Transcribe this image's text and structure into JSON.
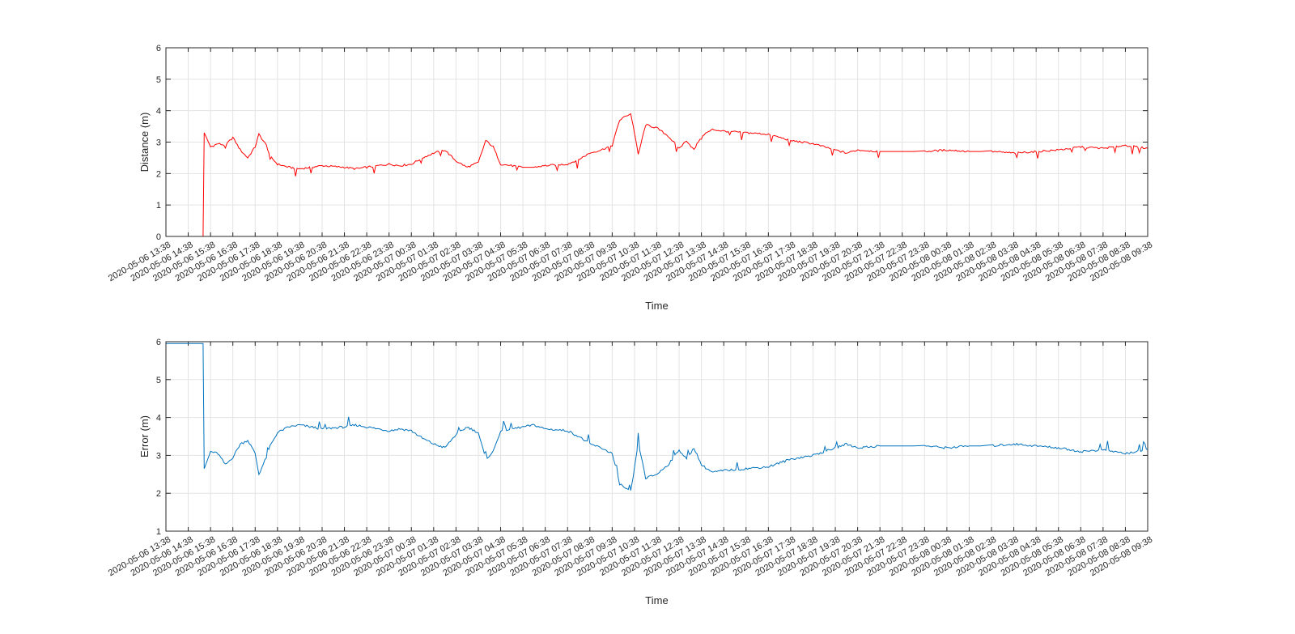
{
  "chart_data": [
    {
      "type": "line",
      "title": "",
      "xlabel": "Time",
      "ylabel": "Distance (m)",
      "ylim": [
        0,
        6
      ],
      "yticks": [
        0,
        1,
        2,
        3,
        4,
        5,
        6
      ],
      "grid": true,
      "legend": "none",
      "x_range": [
        "2020-05-06 13:38",
        "2020-05-08 09:38"
      ],
      "xtick_labels": [
        "2020-05-06 13:38",
        "2020-05-06 14:38",
        "2020-05-06 15:38",
        "2020-05-06 16:38",
        "2020-05-06 17:38",
        "2020-05-06 18:38",
        "2020-05-06 19:38",
        "2020-05-06 20:38",
        "2020-05-06 21:38",
        "2020-05-06 22:38",
        "2020-05-06 23:38",
        "2020-05-07 00:38",
        "2020-05-07 01:38",
        "2020-05-07 02:38",
        "2020-05-07 03:38",
        "2020-05-07 04:38",
        "2020-05-07 05:38",
        "2020-05-07 06:38",
        "2020-05-07 07:38",
        "2020-05-07 08:38",
        "2020-05-07 09:38",
        "2020-05-07 10:38",
        "2020-05-07 11:38",
        "2020-05-07 12:38",
        "2020-05-07 13:38",
        "2020-05-07 14:38",
        "2020-05-07 15:38",
        "2020-05-07 16:38",
        "2020-05-07 17:38",
        "2020-05-07 18:38",
        "2020-05-07 19:38",
        "2020-05-07 20:38",
        "2020-05-07 21:38",
        "2020-05-07 22:38",
        "2020-05-07 23:38",
        "2020-05-08 00:38",
        "2020-05-08 01:38",
        "2020-05-08 02:38",
        "2020-05-08 03:38",
        "2020-05-08 04:38",
        "2020-05-08 05:38",
        "2020-05-08 06:38",
        "2020-05-08 07:38",
        "2020-05-08 08:38",
        "2020-05-08 09:38"
      ],
      "series": [
        {
          "color": "#ff0000",
          "points": [
            [
              "2020-05-06 13:38",
              0
            ],
            [
              "2020-05-06 15:18",
              0
            ],
            [
              "2020-05-06 15:21",
              3.3
            ],
            [
              "2020-05-06 15:38",
              2.85
            ],
            [
              "2020-05-06 15:58",
              2.95
            ],
            [
              "2020-05-06 16:18",
              2.9
            ],
            [
              "2020-05-06 16:38",
              3.15
            ],
            [
              "2020-05-06 16:58",
              2.75
            ],
            [
              "2020-05-06 17:18",
              2.5
            ],
            [
              "2020-05-06 17:38",
              2.85
            ],
            [
              "2020-05-06 17:48",
              3.25
            ],
            [
              "2020-05-06 18:08",
              2.9
            ],
            [
              "2020-05-06 18:18",
              2.55
            ],
            [
              "2020-05-06 18:38",
              2.3
            ],
            [
              "2020-05-06 19:08",
              2.2
            ],
            [
              "2020-05-06 19:38",
              2.15
            ],
            [
              "2020-05-06 20:08",
              2.2
            ],
            [
              "2020-05-06 20:38",
              2.25
            ],
            [
              "2020-05-06 21:38",
              2.2
            ],
            [
              "2020-05-06 22:08",
              2.15
            ],
            [
              "2020-05-06 22:38",
              2.2
            ],
            [
              "2020-05-06 23:38",
              2.3
            ],
            [
              "2020-05-07 00:08",
              2.25
            ],
            [
              "2020-05-07 00:38",
              2.3
            ],
            [
              "2020-05-07 01:08",
              2.5
            ],
            [
              "2020-05-07 01:38",
              2.65
            ],
            [
              "2020-05-07 02:08",
              2.75
            ],
            [
              "2020-05-07 02:38",
              2.4
            ],
            [
              "2020-05-07 03:08",
              2.2
            ],
            [
              "2020-05-07 03:38",
              2.35
            ],
            [
              "2020-05-07 03:58",
              3.05
            ],
            [
              "2020-05-07 04:18",
              2.85
            ],
            [
              "2020-05-07 04:38",
              2.3
            ],
            [
              "2020-05-07 05:38",
              2.2
            ],
            [
              "2020-05-07 06:08",
              2.2
            ],
            [
              "2020-05-07 06:38",
              2.25
            ],
            [
              "2020-05-07 07:38",
              2.3
            ],
            [
              "2020-05-07 08:08",
              2.45
            ],
            [
              "2020-05-07 08:38",
              2.65
            ],
            [
              "2020-05-07 09:08",
              2.75
            ],
            [
              "2020-05-07 09:38",
              2.9
            ],
            [
              "2020-05-07 09:58",
              3.7
            ],
            [
              "2020-05-07 10:18",
              3.85
            ],
            [
              "2020-05-07 10:28",
              3.9
            ],
            [
              "2020-05-07 10:38",
              3.3
            ],
            [
              "2020-05-07 10:48",
              2.6
            ],
            [
              "2020-05-07 11:08",
              3.55
            ],
            [
              "2020-05-07 11:38",
              3.45
            ],
            [
              "2020-05-07 12:08",
              3.2
            ],
            [
              "2020-05-07 12:38",
              2.8
            ],
            [
              "2020-05-07 12:58",
              3.05
            ],
            [
              "2020-05-07 13:18",
              2.75
            ],
            [
              "2020-05-07 13:38",
              3.2
            ],
            [
              "2020-05-07 14:08",
              3.4
            ],
            [
              "2020-05-07 14:38",
              3.35
            ],
            [
              "2020-05-07 15:38",
              3.3
            ],
            [
              "2020-05-07 16:38",
              3.25
            ],
            [
              "2020-05-07 17:38",
              3.05
            ],
            [
              "2020-05-07 18:38",
              2.95
            ],
            [
              "2020-05-07 19:38",
              2.75
            ],
            [
              "2020-05-07 20:08",
              2.65
            ],
            [
              "2020-05-07 20:38",
              2.75
            ],
            [
              "2020-05-07 21:38",
              2.7
            ],
            [
              "2020-05-07 22:38",
              2.7
            ],
            [
              "2020-05-07 23:38",
              2.7
            ],
            [
              "2020-05-08 00:38",
              2.75
            ],
            [
              "2020-05-08 01:38",
              2.7
            ],
            [
              "2020-05-08 02:38",
              2.7
            ],
            [
              "2020-05-08 03:38",
              2.65
            ],
            [
              "2020-05-08 04:38",
              2.7
            ],
            [
              "2020-05-08 05:38",
              2.75
            ],
            [
              "2020-05-08 06:38",
              2.85
            ],
            [
              "2020-05-08 07:38",
              2.8
            ],
            [
              "2020-05-08 08:38",
              2.9
            ],
            [
              "2020-05-08 09:08",
              2.85
            ],
            [
              "2020-05-08 09:38",
              2.8
            ]
          ]
        }
      ]
    },
    {
      "type": "line",
      "title": "",
      "xlabel": "Time",
      "ylabel": "Error (m)",
      "ylim": [
        1,
        6
      ],
      "yticks": [
        1,
        2,
        3,
        4,
        5,
        6
      ],
      "grid": true,
      "legend": "none",
      "x_range": [
        "2020-05-06 13:38",
        "2020-05-08 09:38"
      ],
      "xtick_labels": [
        "2020-05-06 13:38",
        "2020-05-06 14:38",
        "2020-05-06 15:38",
        "2020-05-06 16:38",
        "2020-05-06 17:38",
        "2020-05-06 18:38",
        "2020-05-06 19:38",
        "2020-05-06 20:38",
        "2020-05-06 21:38",
        "2020-05-06 22:38",
        "2020-05-06 23:38",
        "2020-05-07 00:38",
        "2020-05-07 01:38",
        "2020-05-07 02:38",
        "2020-05-07 03:38",
        "2020-05-07 04:38",
        "2020-05-07 05:38",
        "2020-05-07 06:38",
        "2020-05-07 07:38",
        "2020-05-07 08:38",
        "2020-05-07 09:38",
        "2020-05-07 10:38",
        "2020-05-07 11:38",
        "2020-05-07 12:38",
        "2020-05-07 13:38",
        "2020-05-07 14:38",
        "2020-05-07 15:38",
        "2020-05-07 16:38",
        "2020-05-07 17:38",
        "2020-05-07 18:38",
        "2020-05-07 19:38",
        "2020-05-07 20:38",
        "2020-05-07 21:38",
        "2020-05-07 22:38",
        "2020-05-07 23:38",
        "2020-05-08 00:38",
        "2020-05-08 01:38",
        "2020-05-08 02:38",
        "2020-05-08 03:38",
        "2020-05-08 04:38",
        "2020-05-08 05:38",
        "2020-05-08 06:38",
        "2020-05-08 07:38",
        "2020-05-08 08:38",
        "2020-05-08 09:38"
      ],
      "series": [
        {
          "color": "#0072bd",
          "points": [
            [
              "2020-05-06 13:38",
              5.95
            ],
            [
              "2020-05-06 15:18",
              5.95
            ],
            [
              "2020-05-06 15:21",
              2.65
            ],
            [
              "2020-05-06 15:38",
              3.1
            ],
            [
              "2020-05-06 15:58",
              3.05
            ],
            [
              "2020-05-06 16:18",
              2.75
            ],
            [
              "2020-05-06 16:38",
              2.95
            ],
            [
              "2020-05-06 16:58",
              3.3
            ],
            [
              "2020-05-06 17:18",
              3.4
            ],
            [
              "2020-05-06 17:38",
              3.05
            ],
            [
              "2020-05-06 17:48",
              2.5
            ],
            [
              "2020-05-06 18:08",
              2.95
            ],
            [
              "2020-05-06 18:18",
              3.25
            ],
            [
              "2020-05-06 18:38",
              3.6
            ],
            [
              "2020-05-06 19:08",
              3.75
            ],
            [
              "2020-05-06 19:38",
              3.8
            ],
            [
              "2020-05-06 20:08",
              3.75
            ],
            [
              "2020-05-06 20:38",
              3.7
            ],
            [
              "2020-05-06 21:38",
              3.75
            ],
            [
              "2020-05-06 22:08",
              3.8
            ],
            [
              "2020-05-06 22:38",
              3.75
            ],
            [
              "2020-05-06 23:38",
              3.65
            ],
            [
              "2020-05-07 00:08",
              3.7
            ],
            [
              "2020-05-07 00:38",
              3.65
            ],
            [
              "2020-05-07 01:08",
              3.45
            ],
            [
              "2020-05-07 01:38",
              3.3
            ],
            [
              "2020-05-07 02:08",
              3.2
            ],
            [
              "2020-05-07 02:38",
              3.55
            ],
            [
              "2020-05-07 03:08",
              3.75
            ],
            [
              "2020-05-07 03:38",
              3.6
            ],
            [
              "2020-05-07 03:58",
              2.9
            ],
            [
              "2020-05-07 04:18",
              3.1
            ],
            [
              "2020-05-07 04:38",
              3.65
            ],
            [
              "2020-05-07 05:38",
              3.75
            ],
            [
              "2020-05-07 06:08",
              3.8
            ],
            [
              "2020-05-07 06:38",
              3.7
            ],
            [
              "2020-05-07 07:38",
              3.65
            ],
            [
              "2020-05-07 08:08",
              3.5
            ],
            [
              "2020-05-07 08:38",
              3.3
            ],
            [
              "2020-05-07 09:08",
              3.2
            ],
            [
              "2020-05-07 09:38",
              3.05
            ],
            [
              "2020-05-07 09:58",
              2.25
            ],
            [
              "2020-05-07 10:18",
              2.1
            ],
            [
              "2020-05-07 10:28",
              2.05
            ],
            [
              "2020-05-07 10:38",
              2.65
            ],
            [
              "2020-05-07 10:48",
              3.35
            ],
            [
              "2020-05-07 11:08",
              2.4
            ],
            [
              "2020-05-07 11:38",
              2.5
            ],
            [
              "2020-05-07 12:08",
              2.75
            ],
            [
              "2020-05-07 12:38",
              3.15
            ],
            [
              "2020-05-07 12:58",
              2.9
            ],
            [
              "2020-05-07 13:18",
              3.2
            ],
            [
              "2020-05-07 13:38",
              2.75
            ],
            [
              "2020-05-07 14:08",
              2.55
            ],
            [
              "2020-05-07 14:38",
              2.6
            ],
            [
              "2020-05-07 15:38",
              2.65
            ],
            [
              "2020-05-07 16:38",
              2.7
            ],
            [
              "2020-05-07 17:38",
              2.9
            ],
            [
              "2020-05-07 18:38",
              3.0
            ],
            [
              "2020-05-07 19:38",
              3.2
            ],
            [
              "2020-05-07 20:08",
              3.3
            ],
            [
              "2020-05-07 20:38",
              3.2
            ],
            [
              "2020-05-07 21:38",
              3.25
            ],
            [
              "2020-05-07 22:38",
              3.25
            ],
            [
              "2020-05-07 23:38",
              3.25
            ],
            [
              "2020-05-08 00:38",
              3.2
            ],
            [
              "2020-05-08 01:38",
              3.25
            ],
            [
              "2020-05-08 02:38",
              3.25
            ],
            [
              "2020-05-08 03:38",
              3.3
            ],
            [
              "2020-05-08 04:38",
              3.25
            ],
            [
              "2020-05-08 05:38",
              3.2
            ],
            [
              "2020-05-08 06:38",
              3.1
            ],
            [
              "2020-05-08 07:38",
              3.15
            ],
            [
              "2020-05-08 08:38",
              3.05
            ],
            [
              "2020-05-08 09:08",
              3.1
            ],
            [
              "2020-05-08 09:38",
              3.15
            ]
          ]
        }
      ]
    }
  ]
}
